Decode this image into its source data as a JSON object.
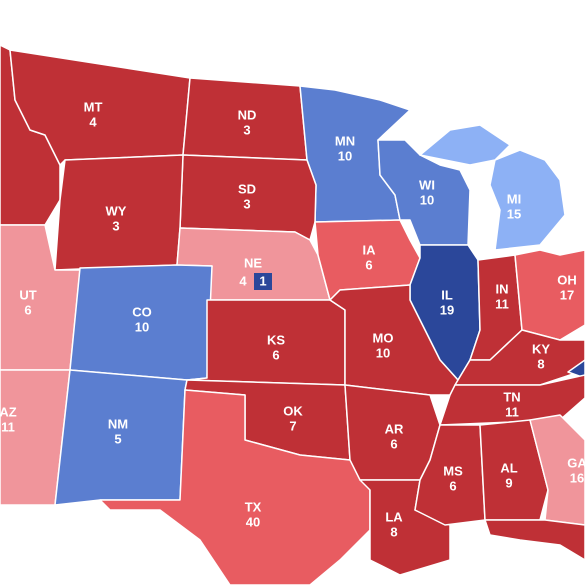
{
  "states": [
    {
      "abbr": "MT",
      "votes": 4
    },
    {
      "abbr": "ND",
      "votes": 3
    },
    {
      "abbr": "MN",
      "votes": 10
    },
    {
      "abbr": "SD",
      "votes": 3
    },
    {
      "abbr": "WY",
      "votes": 3
    },
    {
      "abbr": "WI",
      "votes": 10
    },
    {
      "abbr": "MI",
      "votes": 15
    },
    {
      "abbr": "NE",
      "votes": 4
    },
    {
      "abbr": "IA",
      "votes": 6
    },
    {
      "abbr": "UT",
      "votes": 6
    },
    {
      "abbr": "CO",
      "votes": 10
    },
    {
      "abbr": "IL",
      "votes": 19
    },
    {
      "abbr": "IN",
      "votes": 11
    },
    {
      "abbr": "OH",
      "votes": 17
    },
    {
      "abbr": "KS",
      "votes": 6
    },
    {
      "abbr": "MO",
      "votes": 10
    },
    {
      "abbr": "KY",
      "votes": 8
    },
    {
      "abbr": "AZ",
      "votes": 11
    },
    {
      "abbr": "NM",
      "votes": 5
    },
    {
      "abbr": "OK",
      "votes": 7
    },
    {
      "abbr": "AR",
      "votes": 6
    },
    {
      "abbr": "TN",
      "votes": 11
    },
    {
      "abbr": "MS",
      "votes": 6
    },
    {
      "abbr": "AL",
      "votes": 9
    },
    {
      "abbr": "GA",
      "votes": 16
    },
    {
      "abbr": "TX",
      "votes": 40
    },
    {
      "abbr": "LA",
      "votes": 8
    }
  ],
  "ne_district": {
    "votes": 1
  }
}
